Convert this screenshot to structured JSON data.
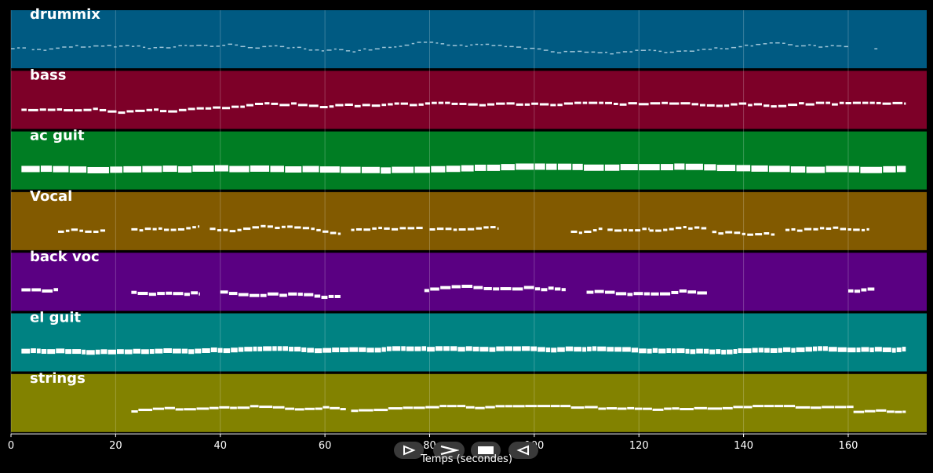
{
  "chart_data": {
    "type": "piano-roll",
    "xlabel": "Temps (secondes)",
    "xlim": [
      0,
      175
    ],
    "xticks": [
      0,
      20,
      40,
      60,
      80,
      100,
      120,
      140,
      160
    ],
    "grid": true,
    "tracks": [
      {
        "name": "drummix",
        "color": "#005a82"
      },
      {
        "name": "bass",
        "color": "#7d0028"
      },
      {
        "name": "ac guit",
        "color": "#007d23"
      },
      {
        "name": "Vocal",
        "color": "#825a00"
      },
      {
        "name": "back voc",
        "color": "#5a0082"
      },
      {
        "name": "el guit",
        "color": "#008282"
      },
      {
        "name": "strings",
        "color": "#828200"
      }
    ]
  },
  "transport": {
    "buttons": [
      {
        "name": "play-button",
        "icon": "play-outline-icon"
      },
      {
        "name": "fast-forward-button",
        "icon": "fast-forward-icon"
      },
      {
        "name": "stop-button",
        "icon": "stop-icon"
      },
      {
        "name": "rewind-button",
        "icon": "rewind-icon"
      }
    ]
  }
}
